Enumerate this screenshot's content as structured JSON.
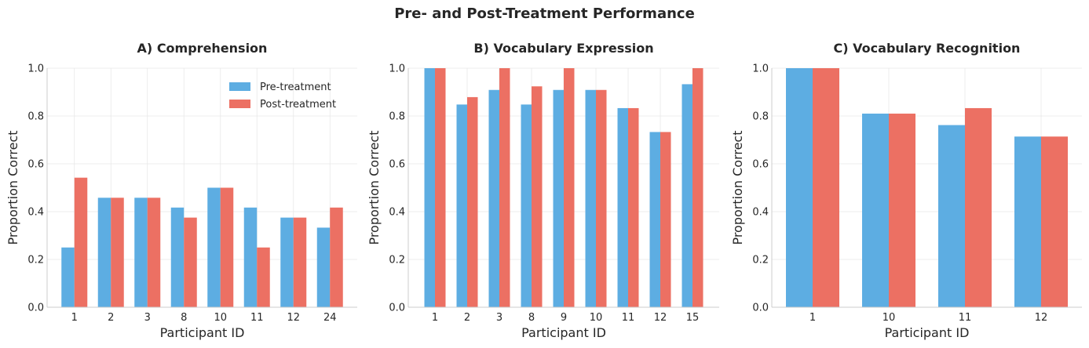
{
  "title": "Pre- and Post-Treatment Performance",
  "colors": {
    "pre": "#5DADE2",
    "post": "#EC7063"
  },
  "legend": {
    "pre": "Pre-treatment",
    "post": "Post-treatment",
    "placement": "top-right"
  },
  "chart_data": [
    {
      "type": "bar",
      "title": "A) Comprehension",
      "xlabel": "Participant ID",
      "ylabel": "Proportion Correct",
      "ylim": [
        0,
        1.0
      ],
      "yticks": [
        "0.0",
        "0.2",
        "0.4",
        "0.6",
        "0.8",
        "1.0"
      ],
      "grid": true,
      "categories": [
        "1",
        "2",
        "3",
        "8",
        "10",
        "11",
        "12",
        "24"
      ],
      "series": [
        {
          "name": "Pre-treatment",
          "values": [
            0.25,
            0.458,
            0.458,
            0.417,
            0.5,
            0.417,
            0.375,
            0.333
          ]
        },
        {
          "name": "Post-treatment",
          "values": [
            0.542,
            0.458,
            0.458,
            0.375,
            0.5,
            0.25,
            0.375,
            0.417
          ]
        }
      ]
    },
    {
      "type": "bar",
      "title": "B) Vocabulary Expression",
      "xlabel": "Participant ID",
      "ylabel": "Proportion Correct",
      "ylim": [
        0,
        1.0
      ],
      "yticks": [
        "0.0",
        "0.2",
        "0.4",
        "0.6",
        "0.8",
        "1.0"
      ],
      "grid": true,
      "categories": [
        "1",
        "2",
        "3",
        "8",
        "9",
        "10",
        "11",
        "12",
        "15"
      ],
      "series": [
        {
          "name": "Pre-treatment",
          "values": [
            1.0,
            0.848,
            0.909,
            0.848,
            0.909,
            0.909,
            0.833,
            0.733,
            0.933
          ]
        },
        {
          "name": "Post-treatment",
          "values": [
            1.0,
            0.879,
            1.0,
            0.924,
            1.0,
            0.909,
            0.833,
            0.733,
            1.0
          ]
        }
      ]
    },
    {
      "type": "bar",
      "title": "C) Vocabulary Recognition",
      "xlabel": "Participant ID",
      "ylabel": "Proportion Correct",
      "ylim": [
        0,
        1.0
      ],
      "yticks": [
        "0.0",
        "0.2",
        "0.4",
        "0.6",
        "0.8",
        "1.0"
      ],
      "grid": true,
      "categories": [
        "1",
        "10",
        "11",
        "12"
      ],
      "series": [
        {
          "name": "Pre-treatment",
          "values": [
            1.0,
            0.81,
            0.762,
            0.714
          ]
        },
        {
          "name": "Post-treatment",
          "values": [
            1.0,
            0.81,
            0.833,
            0.714
          ]
        }
      ]
    }
  ]
}
